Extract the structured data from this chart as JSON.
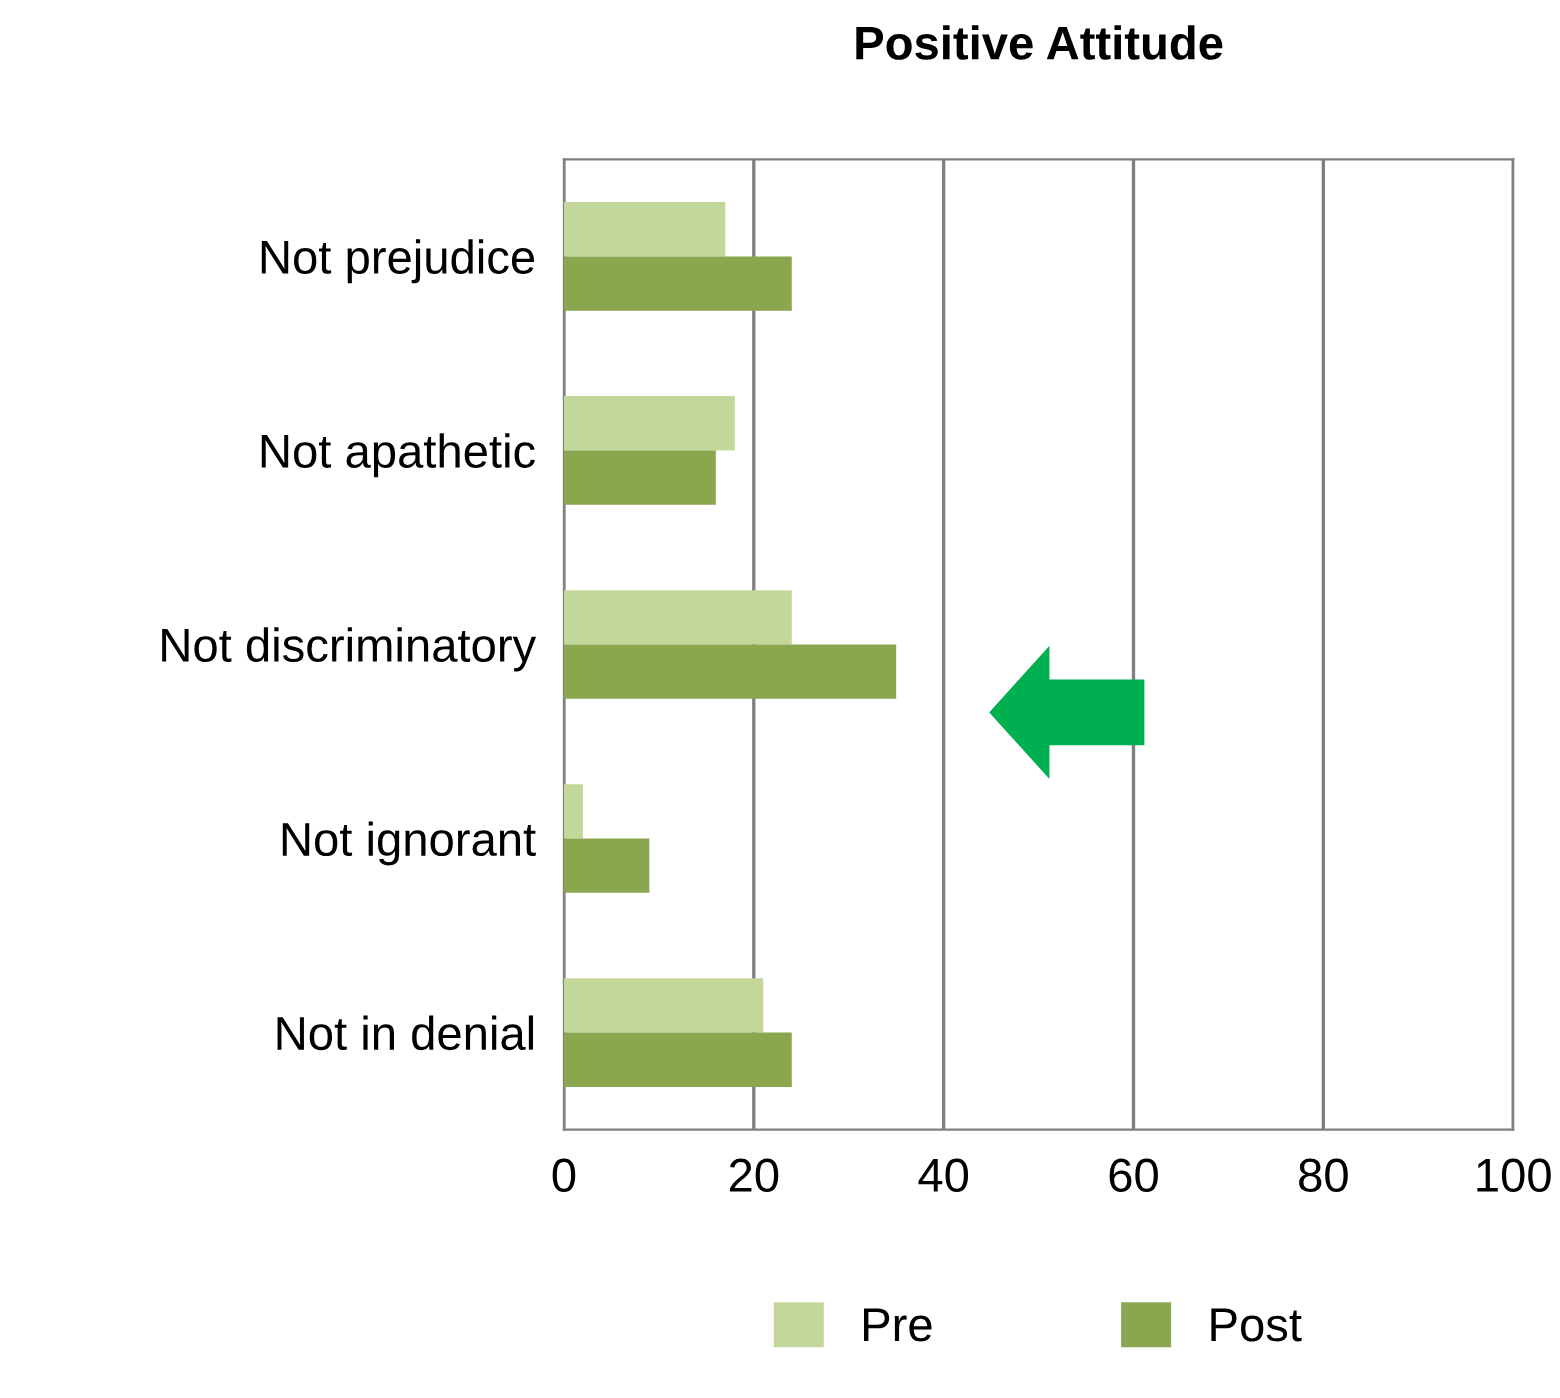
{
  "chart_data": {
    "type": "bar",
    "orientation": "horizontal",
    "title": "Positive Attitude",
    "categories": [
      "Not prejudice",
      "Not apathetic",
      "Not discriminatory",
      "Not ignorant",
      "Not in denial"
    ],
    "series": [
      {
        "name": "Pre",
        "color": "#c4d79b",
        "values": [
          17,
          18,
          24,
          2,
          21
        ]
      },
      {
        "name": "Post",
        "color": "#8aa64f",
        "values": [
          24,
          16,
          35,
          9,
          24
        ]
      }
    ],
    "xlim": [
      0,
      100
    ],
    "xticks": [
      0,
      20,
      40,
      60,
      80,
      100
    ],
    "grid": "x",
    "legend": "bottom"
  }
}
